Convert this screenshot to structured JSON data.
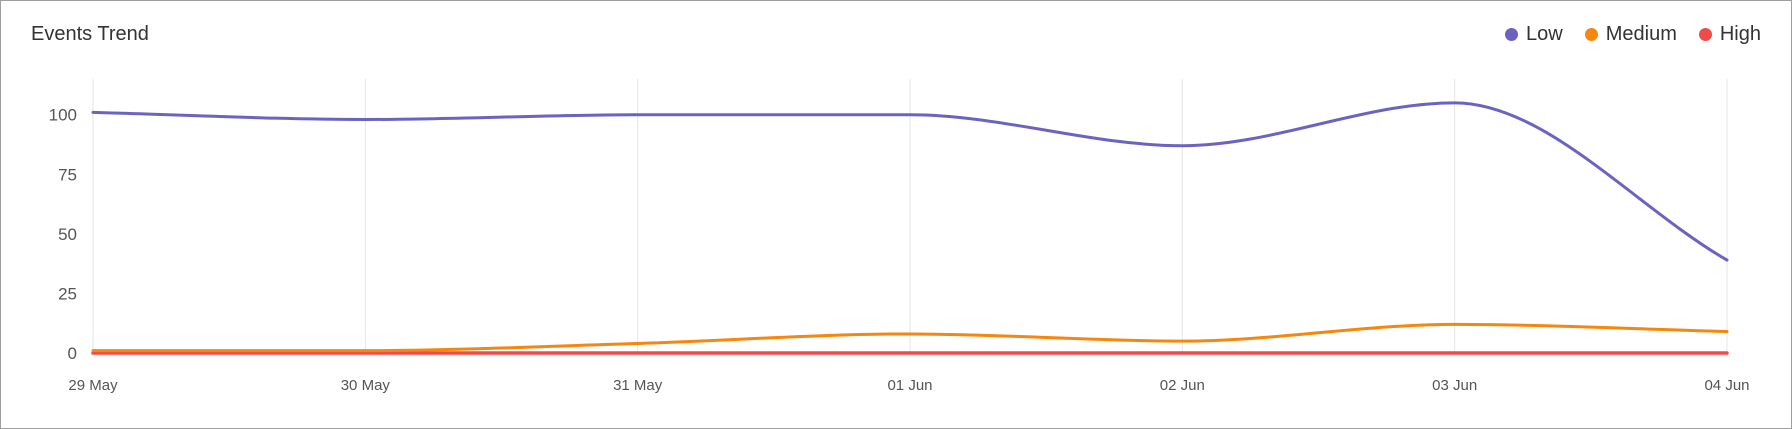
{
  "chart_data": {
    "type": "line",
    "title": "Events Trend",
    "categories": [
      "29 May",
      "30 May",
      "31 May",
      "01 Jun",
      "02 Jun",
      "03 Jun",
      "04 Jun"
    ],
    "y_ticks": [
      0,
      25,
      50,
      75,
      100
    ],
    "ylim": [
      0,
      115
    ],
    "grid": "vertical",
    "legend_position": "top-right",
    "series": [
      {
        "name": "Low",
        "color": "#6C63C0",
        "values": [
          101,
          98,
          100,
          100,
          87,
          105,
          39
        ]
      },
      {
        "name": "Medium",
        "color": "#F5870F",
        "values": [
          1,
          1,
          4,
          8,
          5,
          12,
          9
        ]
      },
      {
        "name": "High",
        "color": "#F04B4B",
        "values": [
          0,
          0,
          0,
          0,
          0,
          0,
          0
        ]
      }
    ]
  }
}
